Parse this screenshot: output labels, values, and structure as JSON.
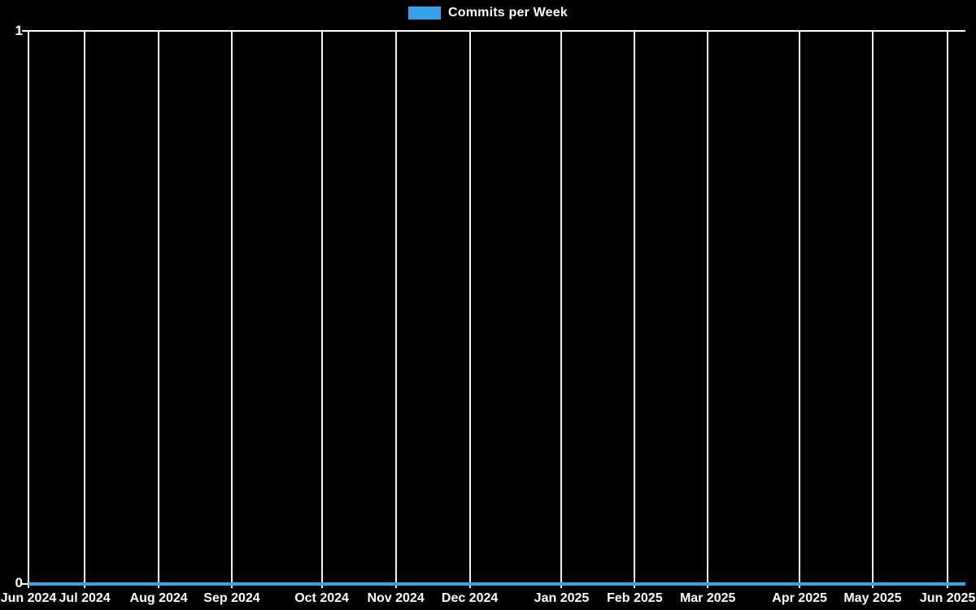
{
  "legend": {
    "label": "Commits per Week"
  },
  "colors": {
    "background": "#000000",
    "grid": "#f2f2f2",
    "axis_line": "#ffffff",
    "text": "#ffffff",
    "series_blue": "#36a2eb"
  },
  "y_axis": {
    "max_label": "1",
    "min_label": "0"
  },
  "chart_data": {
    "type": "line",
    "title": "Commits per Week",
    "xlabel": "",
    "ylabel": "",
    "ylim": [
      0,
      1
    ],
    "y_ticks": [
      0,
      1
    ],
    "grid": "vertical-only",
    "legend_position": "top-center",
    "frequency": "weekly",
    "x_range": [
      "Jun 2024",
      "Jun 2025"
    ],
    "series": [
      {
        "name": "Commits per Week",
        "color": "#36a2eb",
        "note": "flat line at 0 commits for every week from Jun 2024 through Jun 2025",
        "values": [
          0,
          0,
          0,
          0,
          0,
          0,
          0,
          0,
          0,
          0,
          0,
          0,
          0
        ]
      }
    ],
    "x_ticks": [
      {
        "label": "Jun 2024",
        "pos": 0.0
      },
      {
        "label": "Jul 2024",
        "pos": 0.06
      },
      {
        "label": "Aug 2024",
        "pos": 0.139
      },
      {
        "label": "Sep 2024",
        "pos": 0.217
      },
      {
        "label": "Oct 2024",
        "pos": 0.313
      },
      {
        "label": "Nov 2024",
        "pos": 0.392
      },
      {
        "label": "Dec 2024",
        "pos": 0.471
      },
      {
        "label": "Jan 2025",
        "pos": 0.569
      },
      {
        "label": "Feb 2025",
        "pos": 0.647
      },
      {
        "label": "Mar 2025",
        "pos": 0.725
      },
      {
        "label": "Apr 2025",
        "pos": 0.823
      },
      {
        "label": "May 2025",
        "pos": 0.901
      },
      {
        "label": "Jun 2025",
        "pos": 0.981
      }
    ]
  }
}
